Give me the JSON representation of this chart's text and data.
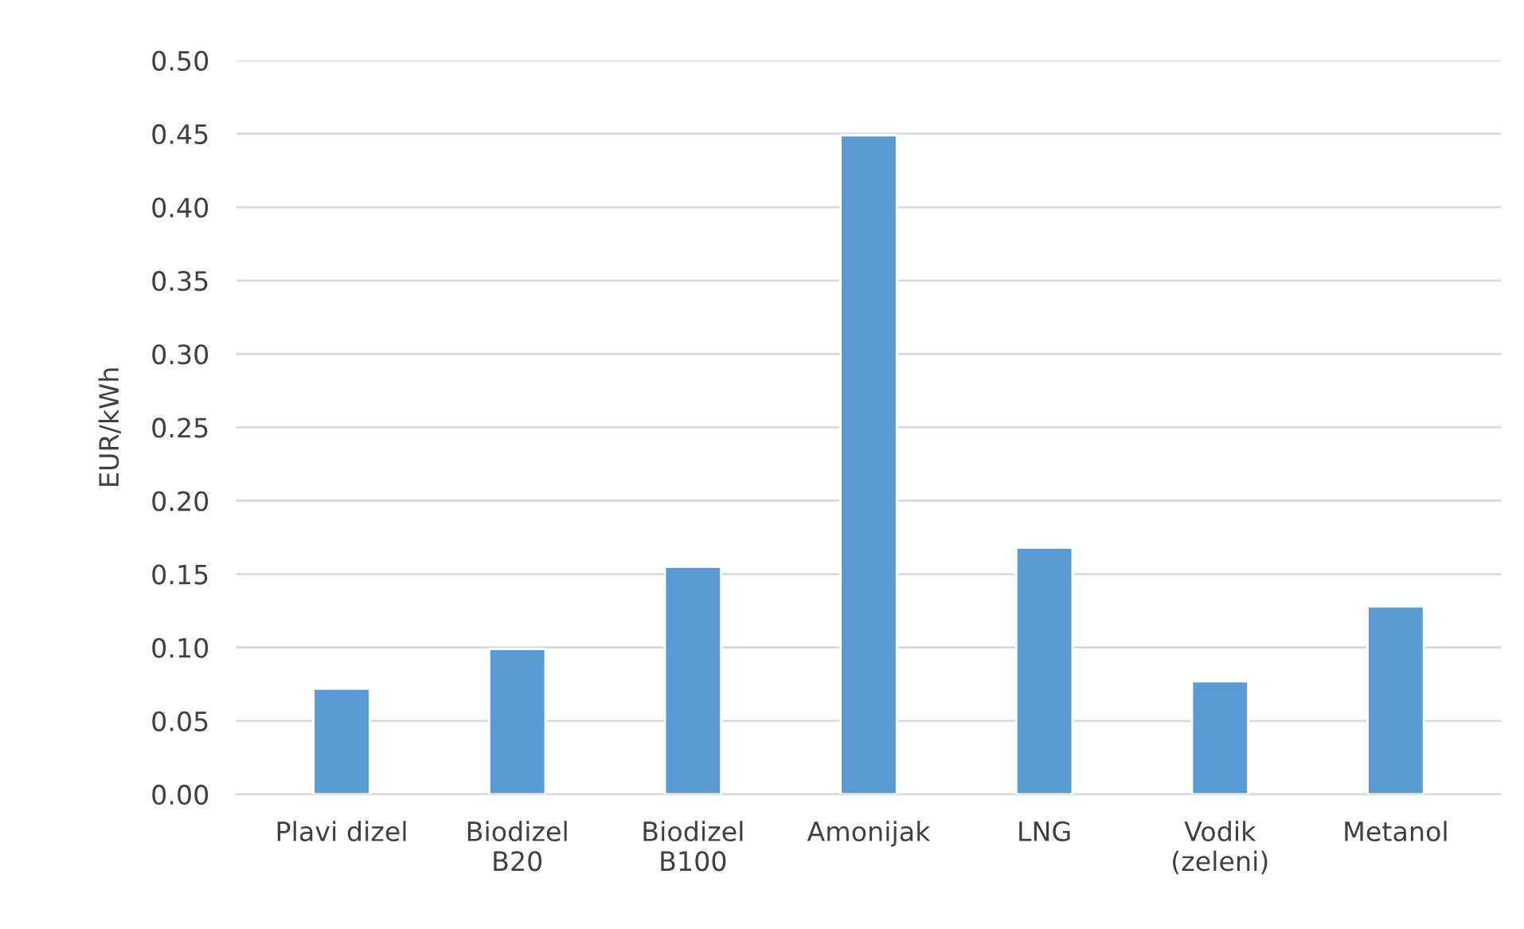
{
  "chart_data": {
    "type": "bar",
    "ylabel": "EUR/kWh",
    "categories": [
      "Plavi dizel",
      "Biodizel\nB20",
      "Biodizel\nB100",
      "Amonijak",
      "LNG",
      "Vodik\n(zeleni)",
      "Metanol"
    ],
    "values": [
      0.072,
      0.099,
      0.155,
      0.449,
      0.168,
      0.077,
      0.128
    ],
    "color": "#5b9bd5",
    "ylim": [
      0,
      0.5
    ],
    "yticks": [
      {
        "value": 0,
        "label": "0.00"
      },
      {
        "value": 0.05,
        "label": "0.05"
      },
      {
        "value": 0.1,
        "label": "0.10"
      },
      {
        "value": 0.15,
        "label": "0.15"
      },
      {
        "value": 0.2,
        "label": "0.20"
      },
      {
        "value": 0.25,
        "label": "0.25"
      },
      {
        "value": 0.3,
        "label": "0.30"
      },
      {
        "value": 0.35,
        "label": "0.35"
      },
      {
        "value": 0.4,
        "label": "0.40"
      },
      {
        "value": 0.45,
        "label": "0.45"
      },
      {
        "value": 0.5,
        "label": "0.50"
      }
    ],
    "grid": "y"
  }
}
